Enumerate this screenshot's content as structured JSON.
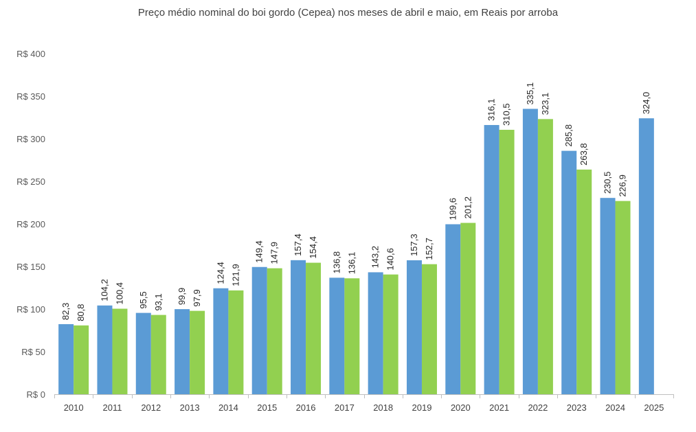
{
  "chart_data": {
    "type": "bar",
    "title": "Preço médio nominal do boi gordo (Cepea) nos meses de abril e maio, em Reais por arroba",
    "xlabel": "",
    "ylabel": "",
    "ylim": [
      0,
      400
    ],
    "yticks": [
      {
        "value": 0,
        "label": "R$ 0"
      },
      {
        "value": 50,
        "label": "R$ 50"
      },
      {
        "value": 100,
        "label": "R$ 100"
      },
      {
        "value": 150,
        "label": "R$ 150"
      },
      {
        "value": 200,
        "label": "R$ 200"
      },
      {
        "value": 250,
        "label": "R$ 250"
      },
      {
        "value": 300,
        "label": "R$ 300"
      },
      {
        "value": 350,
        "label": "R$ 350"
      },
      {
        "value": 400,
        "label": "R$ 400"
      }
    ],
    "grid": false,
    "legend": "none",
    "categories": [
      "2010",
      "2011",
      "2012",
      "2013",
      "2014",
      "2015",
      "2016",
      "2017",
      "2018",
      "2019",
      "2020",
      "2021",
      "2022",
      "2023",
      "2024",
      "2025"
    ],
    "series": [
      {
        "name": "abril",
        "color": "#5B9BD5",
        "values": [
          82.3,
          104.2,
          95.5,
          99.9,
          124.4,
          149.4,
          157.4,
          136.8,
          143.2,
          157.3,
          199.6,
          316.1,
          335.1,
          285.8,
          230.5,
          324.0
        ],
        "labels": [
          "82,3",
          "104,2",
          "95,5",
          "99,9",
          "124,4",
          "149,4",
          "157,4",
          "136,8",
          "143,2",
          "157,3",
          "199,6",
          "316,1",
          "335,1",
          "285,8",
          "230,5",
          "324,0"
        ]
      },
      {
        "name": "maio",
        "color": "#92D050",
        "values": [
          80.8,
          100.4,
          93.1,
          97.9,
          121.9,
          147.9,
          154.4,
          136.1,
          140.6,
          152.7,
          201.2,
          310.5,
          323.1,
          263.8,
          226.9,
          null
        ],
        "labels": [
          "80,8",
          "100,4",
          "93,1",
          "97,9",
          "121,9",
          "147,9",
          "154,4",
          "136,1",
          "140,6",
          "152,7",
          "201,2",
          "310,5",
          "323,1",
          "263,8",
          "226,9",
          null
        ]
      }
    ]
  }
}
